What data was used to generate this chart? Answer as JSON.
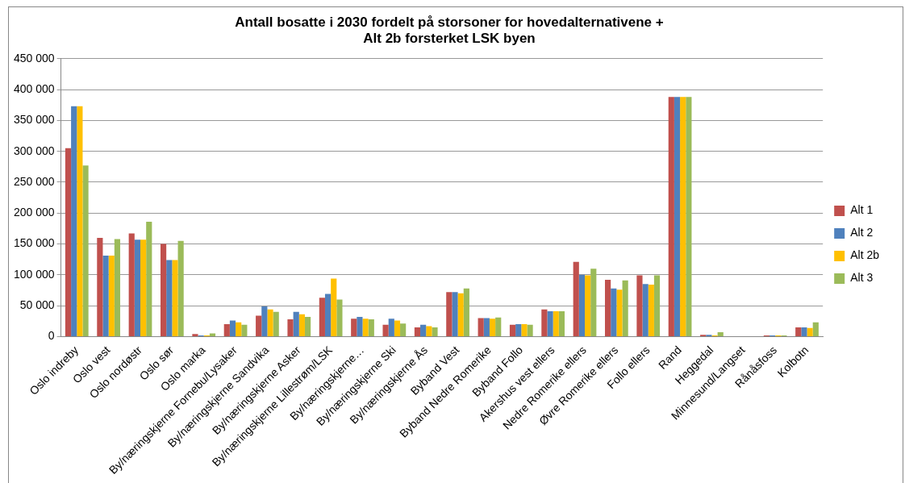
{
  "chart_data": {
    "type": "bar",
    "title": [
      "Antall bosatte i 2030 fordelt på storsoner for hovedalternativene +",
      "Alt 2b forsterket LSK byen"
    ],
    "categories": [
      "Oslo indreby",
      "Oslo vest",
      "Oslo nordøstr",
      "Oslo sør",
      "Oslo marka",
      "By/næringskjerne Fornebu/Lysaker",
      "By/næringskjerne Sandvika",
      "By/næringskjerne Asker",
      "By/næringskjerne Lillestrøm/LSK",
      "By/næringskjerne…",
      "By/næringskjerne Ski",
      "By/næringskjerne Ås",
      "Byband Vest",
      "Byband Nedre Romerike",
      "Byband Follo",
      "Akershus vest ellers",
      "Nedre Romerike ellers",
      "Øvre Romerike ellers",
      "Follo ellers",
      "Rand",
      "Heggedal",
      "Minnesund/Langset",
      "Rånåsfoss",
      "Kolbotn"
    ],
    "series": [
      {
        "name": "Alt 1",
        "color": "#c0504d",
        "values": [
          305000,
          160000,
          167000,
          150000,
          4000,
          20000,
          34000,
          28000,
          63000,
          29000,
          19000,
          15000,
          72000,
          30000,
          19000,
          44000,
          121000,
          92000,
          99000,
          388000,
          3000,
          0,
          2000,
          15000
        ]
      },
      {
        "name": "Alt 2",
        "color": "#4f81bd",
        "values": [
          373000,
          131000,
          157000,
          124000,
          2000,
          26000,
          49000,
          40000,
          69000,
          32000,
          29000,
          19000,
          72000,
          30000,
          20000,
          41000,
          100000,
          78000,
          85000,
          388000,
          3000,
          0,
          2000,
          15000
        ]
      },
      {
        "name": "Alt 2b",
        "color": "#ffc000",
        "values": [
          373000,
          131000,
          157000,
          124000,
          2000,
          23000,
          44000,
          36000,
          94000,
          29000,
          26000,
          17000,
          70000,
          29000,
          20000,
          41000,
          99000,
          76000,
          84000,
          388000,
          2000,
          0,
          2000,
          14000
        ]
      },
      {
        "name": "Alt 3",
        "color": "#9bbb59",
        "values": [
          277000,
          158000,
          186000,
          155000,
          5000,
          19000,
          40000,
          32000,
          60000,
          28000,
          21000,
          15000,
          78000,
          31000,
          19000,
          41000,
          110000,
          91000,
          99000,
          388000,
          7000,
          0,
          2000,
          23000
        ]
      }
    ],
    "ylim": [
      0,
      450000
    ],
    "yticks": [
      {
        "value": 0,
        "label": "0"
      },
      {
        "value": 50000,
        "label": "50 000"
      },
      {
        "value": 100000,
        "label": "100 000"
      },
      {
        "value": 150000,
        "label": "150 000"
      },
      {
        "value": 200000,
        "label": "200 000"
      },
      {
        "value": 250000,
        "label": "250 000"
      },
      {
        "value": 300000,
        "label": "300 000"
      },
      {
        "value": 350000,
        "label": "350 000"
      },
      {
        "value": 400000,
        "label": "400 000"
      },
      {
        "value": 450000,
        "label": "450 000"
      }
    ],
    "grid": "y",
    "legend": "right"
  }
}
